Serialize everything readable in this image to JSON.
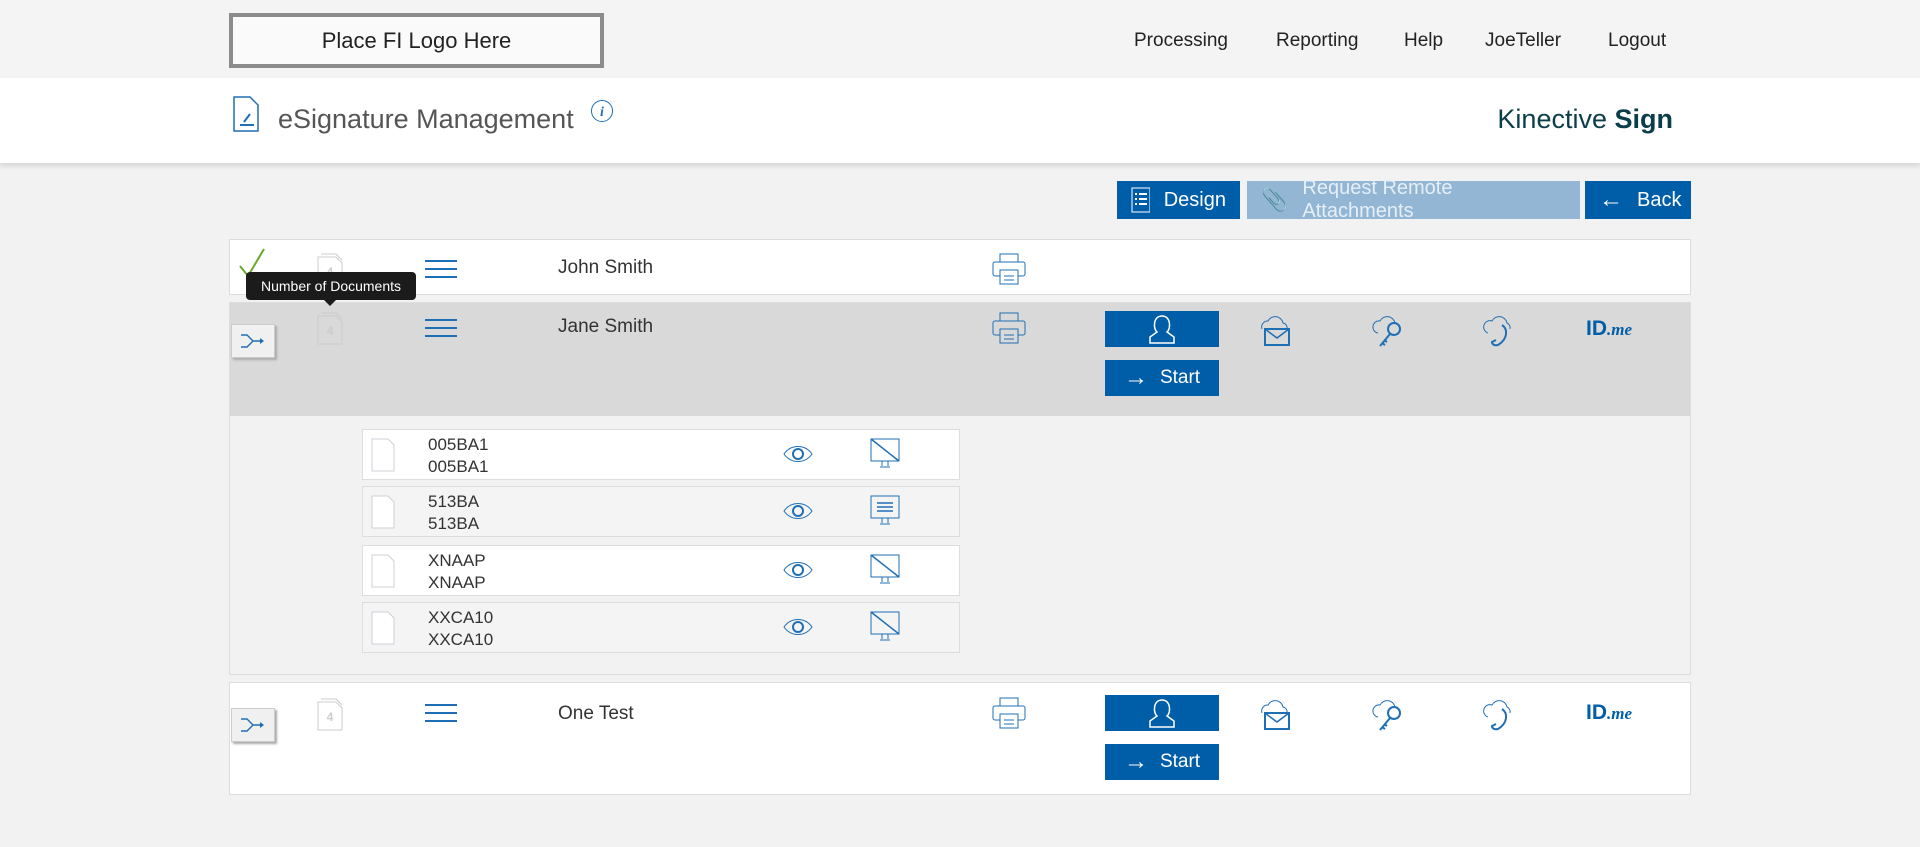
{
  "header": {
    "logo_text": "Place FI Logo Here",
    "nav": [
      "Processing",
      "Reporting",
      "Help",
      "JoeTeller",
      "Logout"
    ],
    "title": "eSignature Management",
    "brand_light": "Kinective",
    "brand_bold": "Sign"
  },
  "toolbar": {
    "design": "Design",
    "request": "Request Remote Attachments",
    "back": "Back"
  },
  "tooltip": "Number of Documents",
  "signers": [
    {
      "name": "John Smith",
      "doc_count": "4",
      "status": "complete"
    },
    {
      "name": "Jane Smith",
      "doc_count": "4",
      "start": "Start",
      "idme": "ID",
      "idme_suffix": ".me"
    },
    {
      "name": "One Test",
      "doc_count": "4",
      "start": "Start",
      "idme": "ID",
      "idme_suffix": ".me"
    }
  ],
  "documents": [
    {
      "code": "005BA1",
      "name": "005BA1",
      "monitor": "disabled"
    },
    {
      "code": "513BA",
      "name": "513BA",
      "monitor": "enabled"
    },
    {
      "code": "XNAAP",
      "name": "XNAAP",
      "monitor": "disabled"
    },
    {
      "code": "XXCA10",
      "name": "XXCA10",
      "monitor": "disabled"
    }
  ],
  "colors": {
    "primary": "#005ea8",
    "disabled": "#93b6d4",
    "check": "#6aa82a"
  }
}
